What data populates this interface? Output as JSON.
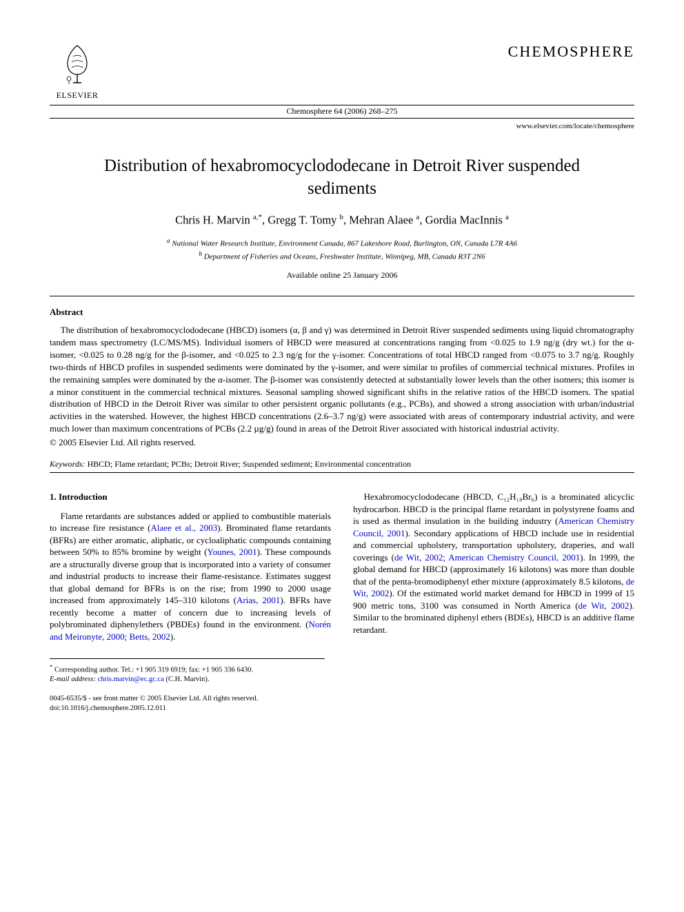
{
  "publisher": {
    "name": "ELSEVIER",
    "logo_alt": "elsevier-tree"
  },
  "journal": {
    "brand": "CHEMOSPHERE",
    "reference": "Chemosphere 64 (2006) 268–275",
    "url": "www.elsevier.com/locate/chemosphere"
  },
  "article": {
    "title": "Distribution of hexabromocyclododecane in Detroit River suspended sediments",
    "authors_html": "Chris H. Marvin <sup>a,*</sup>, Gregg T. Tomy <sup>b</sup>, Mehran Alaee <sup>a</sup>, Gordia MacInnis <sup>a</sup>",
    "affiliations": {
      "a": "National Water Research Institute, Environment Canada, 867 Lakeshore Road, Burlington, ON, Canada L7R 4A6",
      "b": "Department of Fisheries and Oceans, Freshwater Institute, Winnipeg, MB, Canada R3T 2N6"
    },
    "available": "Available online 25 January 2006"
  },
  "abstract": {
    "heading": "Abstract",
    "body": "The distribution of hexabromocyclododecane (HBCD) isomers (α, β and γ) was determined in Detroit River suspended sediments using liquid chromatography tandem mass spectrometry (LC/MS/MS). Individual isomers of HBCD were measured at concentrations ranging from <0.025 to 1.9 ng/g (dry wt.) for the α-isomer, <0.025 to 0.28 ng/g for the β-isomer, and <0.025 to 2.3 ng/g for the γ-isomer. Concentrations of total HBCD ranged from <0.075 to 3.7 ng/g. Roughly two-thirds of HBCD profiles in suspended sediments were dominated by the γ-isomer, and were similar to profiles of commercial technical mixtures. Profiles in the remaining samples were dominated by the α-isomer. The β-isomer was consistently detected at substantially lower levels than the other isomers; this isomer is a minor constituent in the commercial technical mixtures. Seasonal sampling showed significant shifts in the relative ratios of the HBCD isomers. The spatial distribution of HBCD in the Detroit River was similar to other persistent organic pollutants (e.g., PCBs), and showed a strong association with urban/industrial activities in the watershed. However, the highest HBCD concentrations (2.6–3.7 ng/g) were associated with areas of contemporary industrial activity, and were much lower than maximum concentrations of PCBs (2.2 µg/g) found in areas of the Detroit River associated with historical industrial activity.",
    "copyright": "© 2005 Elsevier Ltd. All rights reserved."
  },
  "keywords": {
    "label": "Keywords:",
    "list": "HBCD; Flame retardant; PCBs; Detroit River; Suspended sediment; Environmental concentration"
  },
  "intro": {
    "heading": "1. Introduction",
    "para1_a": "Flame retardants are substances added or applied to combustible materials to increase fire resistance (",
    "ref1": "Alaee et al., 2003",
    "para1_b": "). Brominated flame retardants (BFRs) are either aromatic, aliphatic, or cycloaliphatic compounds containing between 50% to 85% bromine by weight (",
    "ref2": "Younes, 2001",
    "para1_c": "). These compounds are a structurally diverse group that is incorporated into a variety of consumer and industrial products to increase their flame-resistance. Estimates suggest that global demand for BFRs is on the rise; from 1990 to 2000 usage increased from approximately 145–310 kilotons (",
    "ref3": "Arias, 2001",
    "para1_d": "). BFRs have recently become a matter of concern due to increasing levels of polybrominated diphenylethers (PBDEs) found in the environment. (",
    "ref4": "Norén and Meironyte, 2000; Betts, 2002",
    "para1_e": ").",
    "para2_a": "Hexabromocyclododecane (HBCD, C₁₂H₁₈Br₆) is a brominated alicyclic hydrocarbon. HBCD is the principal flame retardant in polystyrene foams and is used as thermal insulation in the building industry (",
    "ref5": "American Chemistry Council, 2001",
    "para2_b": "). Secondary applications of HBCD include use in residential and commercial upholstery, transportation upholstery, draperies, and wall coverings (",
    "ref6": "de Wit, 2002; American Chemistry Council, 2001",
    "para2_c": "). In 1999, the global demand for HBCD (approximately 16 kilotons) was more than double that of the penta-bromodiphenyl ether mixture (approximately 8.5 kilotons, ",
    "ref7": "de Wit, 2002",
    "para2_d": "). Of the estimated world market demand for HBCD in 1999 of 15 900 metric tons, 3100 was consumed in North America (",
    "ref8": "de Wit, 2002",
    "para2_e": "). Similar to the brominated diphenyl ethers (BDEs), HBCD is an additive flame retardant."
  },
  "footnote": {
    "corr": "Corresponding author. Tel.: +1 905 319 6919; fax: +1 905 336 6430.",
    "email_label": "E-mail address:",
    "email": "chris.marvin@ec.gc.ca",
    "email_who": "(C.H. Marvin)."
  },
  "bottom": {
    "line1": "0045-6535/$ - see front matter © 2005 Elsevier Ltd. All rights reserved.",
    "line2": "doi:10.1016/j.chemosphere.2005.12.011"
  },
  "colors": {
    "text": "#000000",
    "link": "#0000cc",
    "bg": "#ffffff"
  }
}
